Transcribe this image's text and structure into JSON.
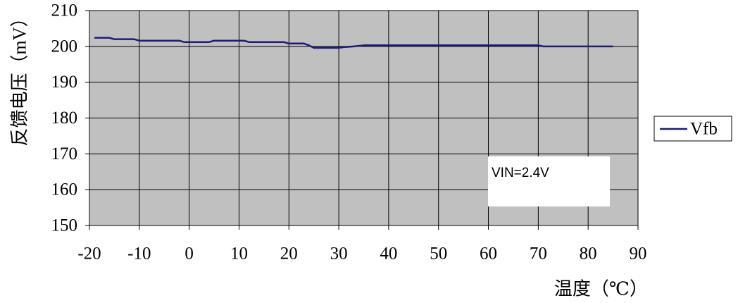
{
  "chart_data": {
    "type": "line",
    "xlabel": "温度（℃）",
    "ylabel": "反馈电压（mV）",
    "xlim": [
      -20,
      90
    ],
    "ylim": [
      150,
      210
    ],
    "xticks": [
      -20,
      -10,
      0,
      10,
      20,
      30,
      40,
      50,
      60,
      70,
      80,
      90
    ],
    "yticks": [
      150,
      160,
      170,
      180,
      190,
      200,
      210
    ],
    "grid": true,
    "legend": "right",
    "annotation": "VIN=2.4V",
    "plot_background": "#c0c0c0",
    "x": [
      -19,
      -16,
      -15,
      -11,
      -10,
      -2,
      -1,
      4,
      5,
      11,
      12,
      19,
      20,
      23,
      24,
      25,
      30,
      31,
      33,
      35,
      70,
      71,
      85
    ],
    "series": [
      {
        "name": "Vfb",
        "color": "#1c1c78",
        "values": [
          202.4,
          202.4,
          202.0,
          202.0,
          201.6,
          201.6,
          201.2,
          201.2,
          201.6,
          201.6,
          201.2,
          201.2,
          200.8,
          200.8,
          200.3,
          199.6,
          199.6,
          199.8,
          200.0,
          200.3,
          200.3,
          200.0,
          200.0
        ]
      }
    ]
  }
}
